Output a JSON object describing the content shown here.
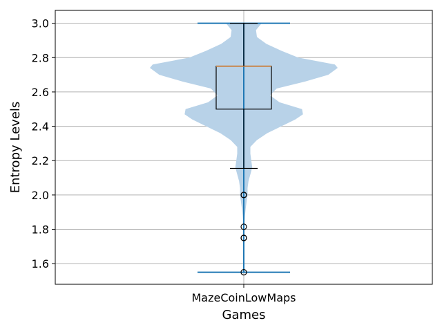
{
  "chart_data": {
    "type": "violin",
    "xlabel": "Games",
    "ylabel": "Entropy Levels",
    "categories": [
      "MazeCoinLowMaps"
    ],
    "ylim": [
      1.48,
      3.075
    ],
    "yticks": [
      1.6,
      1.8,
      2.0,
      2.2,
      2.4,
      2.6,
      2.8,
      3.0
    ],
    "ytick_labels": [
      "1.6",
      "1.8",
      "2.0",
      "2.2",
      "2.4",
      "2.6",
      "2.8",
      "3.0"
    ],
    "grid": true,
    "violin": {
      "min": 1.55,
      "max": 3.0,
      "color": "#b8d2e8",
      "whisker_color": "#1f77b4",
      "density_profile": [
        [
          3.0,
          0.19
        ],
        [
          2.96,
          0.13
        ],
        [
          2.92,
          0.14
        ],
        [
          2.88,
          0.24
        ],
        [
          2.84,
          0.4
        ],
        [
          2.8,
          0.58
        ],
        [
          2.76,
          0.97
        ],
        [
          2.74,
          1.0
        ],
        [
          2.7,
          0.9
        ],
        [
          2.66,
          0.65
        ],
        [
          2.62,
          0.35
        ],
        [
          2.58,
          0.28
        ],
        [
          2.54,
          0.38
        ],
        [
          2.5,
          0.62
        ],
        [
          2.47,
          0.63
        ],
        [
          2.44,
          0.55
        ],
        [
          2.4,
          0.4
        ],
        [
          2.36,
          0.25
        ],
        [
          2.32,
          0.14
        ],
        [
          2.28,
          0.07
        ],
        [
          2.24,
          0.07
        ],
        [
          2.2,
          0.08
        ],
        [
          2.16,
          0.09
        ],
        [
          2.12,
          0.07
        ],
        [
          2.08,
          0.05
        ],
        [
          2.04,
          0.04
        ],
        [
          2.0,
          0.04
        ],
        [
          1.96,
          0.03
        ],
        [
          1.92,
          0.02
        ],
        [
          1.88,
          0.012
        ],
        [
          1.84,
          0.008
        ],
        [
          1.8,
          0.004
        ],
        [
          1.75,
          0.002
        ],
        [
          1.7,
          0.001
        ],
        [
          1.6,
          0.0
        ],
        [
          1.55,
          0.0
        ]
      ]
    },
    "boxplot": {
      "q1": 2.5,
      "median": 2.75,
      "q3": 2.75,
      "whisker_low": 2.155,
      "whisker_high": 3.0,
      "median_color": "#c8864a",
      "outliers": [
        2.0,
        2.0,
        1.815,
        1.75,
        1.75,
        1.55
      ]
    }
  }
}
